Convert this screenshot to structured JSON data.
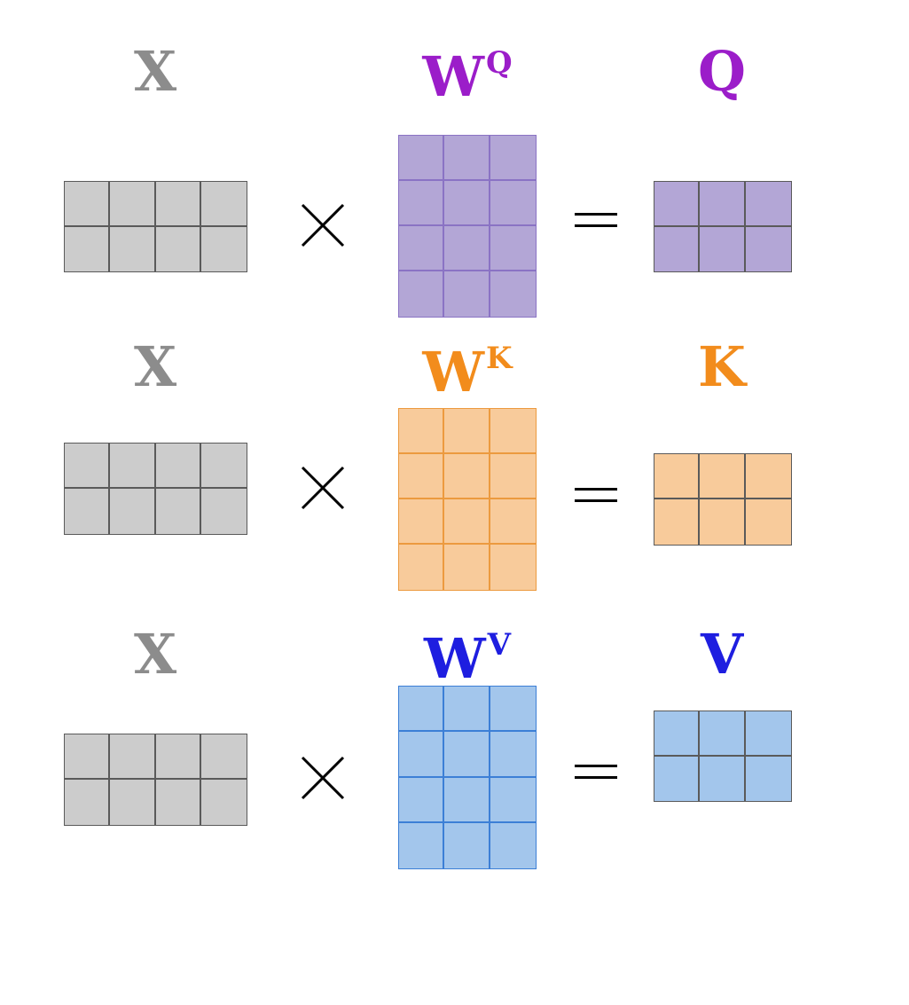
{
  "rows": [
    {
      "x_label": "X",
      "w_base": "W",
      "w_sup": "Q",
      "out_label": "Q",
      "colors": {
        "label": "#9b1dc9",
        "fill": "#b3a6d6",
        "line": "#8a73c4"
      }
    },
    {
      "x_label": "X",
      "w_base": "W",
      "w_sup": "K",
      "out_label": "K",
      "colors": {
        "label": "#f28c1c",
        "fill": "#f8cb9b",
        "line": "#ec9a3f"
      }
    },
    {
      "x_label": "X",
      "w_base": "W",
      "w_sup": "V",
      "out_label": "V",
      "colors": {
        "label": "#1e1ee0",
        "fill": "#a3c6ec",
        "line": "#3c7fd6"
      }
    }
  ],
  "x_colors": {
    "label": "#8c8c8c",
    "fill": "#cccccc",
    "line": "#5a5a5a"
  },
  "out_line_color": "#5a5a5a",
  "matrix_dims": {
    "x": {
      "rows": 2,
      "cols": 4
    },
    "w": {
      "rows": 4,
      "cols": 3
    },
    "out": {
      "rows": 2,
      "cols": 3
    }
  }
}
